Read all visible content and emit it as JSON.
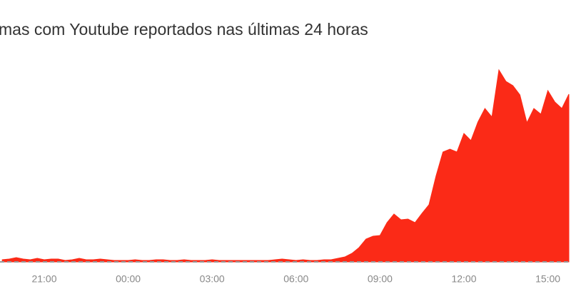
{
  "chart_data": {
    "type": "area",
    "title": "mas com Youtube reportados nas últimas 24 horas",
    "categories": [
      null,
      null,
      null,
      null,
      null,
      null,
      "21:00",
      null,
      null,
      null,
      null,
      null,
      null,
      null,
      null,
      null,
      null,
      null,
      "00:00",
      null,
      null,
      null,
      null,
      null,
      null,
      null,
      null,
      null,
      null,
      null,
      "03:00",
      null,
      null,
      null,
      null,
      null,
      null,
      null,
      null,
      null,
      null,
      null,
      "06:00",
      null,
      null,
      null,
      null,
      null,
      null,
      null,
      null,
      null,
      null,
      null,
      "09:00",
      null,
      null,
      null,
      null,
      null,
      null,
      null,
      null,
      null,
      null,
      null,
      "12:00",
      null,
      null,
      null,
      null,
      null,
      null,
      null,
      null,
      null,
      null,
      null,
      "15:00",
      null,
      null,
      null
    ],
    "values": [
      3,
      4,
      6,
      4,
      3,
      5,
      3,
      4,
      4,
      2,
      3,
      5,
      3,
      3,
      4,
      3,
      2,
      2,
      2,
      3,
      2,
      2,
      3,
      3,
      2,
      2,
      3,
      2,
      2,
      2,
      3,
      2,
      2,
      2,
      2,
      2,
      2,
      2,
      2,
      3,
      4,
      3,
      2,
      3,
      2,
      2,
      3,
      3,
      5,
      7,
      12,
      20,
      32,
      36,
      37,
      55,
      67,
      59,
      60,
      55,
      68,
      80,
      120,
      154,
      158,
      154,
      180,
      170,
      196,
      215,
      203,
      269,
      253,
      247,
      234,
      195,
      215,
      207,
      240,
      224,
      215,
      235
    ],
    "color": "#fb2a17",
    "ylim": [
      0,
      280
    ]
  }
}
